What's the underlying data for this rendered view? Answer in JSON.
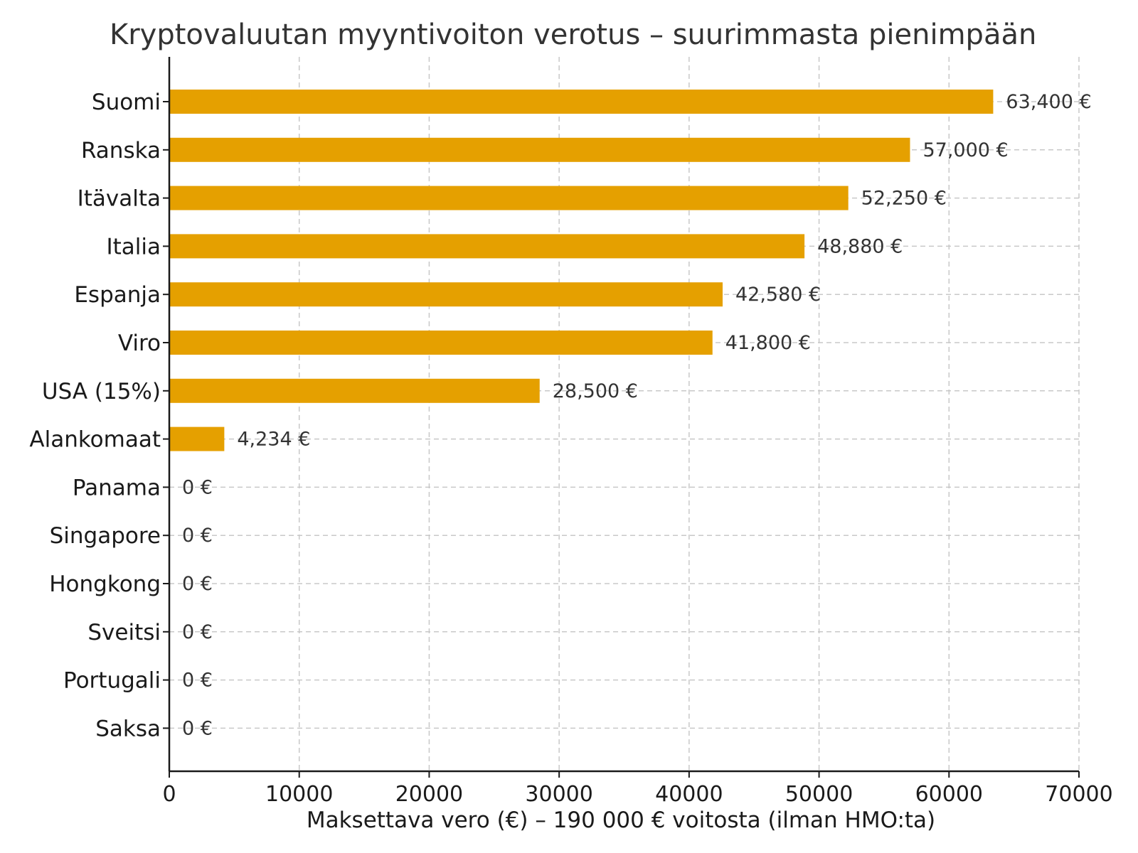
{
  "chart_data": {
    "type": "bar",
    "orientation": "horizontal",
    "title": "Kryptovaluutan myyntivoiton verotus – suurimmasta pienimpään",
    "xlabel": "Maksettava vero (€) – 190 000 € voitosta (ilman HMO:ta)",
    "ylabel": "",
    "categories": [
      "Suomi",
      "Ranska",
      "Itävalta",
      "Italia",
      "Espanja",
      "Viro",
      "USA (15%)",
      "Alankomaat",
      "Panama",
      "Singapore",
      "Hongkong",
      "Sveitsi",
      "Portugali",
      "Saksa"
    ],
    "values": [
      63400,
      57000,
      52250,
      48880,
      42580,
      41800,
      28500,
      4234,
      0,
      0,
      0,
      0,
      0,
      0
    ],
    "value_labels": [
      "63,400 €",
      "57,000 €",
      "52,250 €",
      "48,880 €",
      "42,580 €",
      "41,800 €",
      "28,500 €",
      "4,234 €",
      "0 €",
      "0 €",
      "0 €",
      "0 €",
      "0 €",
      "0 €"
    ],
    "xlim": [
      0,
      70000
    ],
    "xticks": [
      0,
      10000,
      20000,
      30000,
      40000,
      50000,
      60000,
      70000
    ],
    "xtick_labels": [
      "0",
      "10000",
      "20000",
      "30000",
      "40000",
      "50000",
      "60000",
      "70000"
    ],
    "grid": true,
    "bar_color": "#E5A000"
  }
}
